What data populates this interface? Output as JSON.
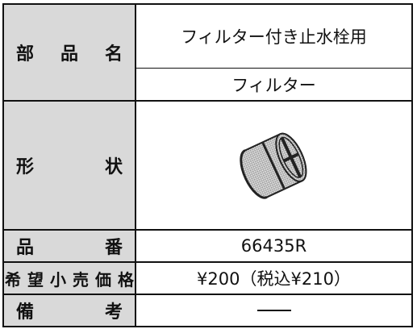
{
  "table": {
    "rows": [
      {
        "header": "部品名",
        "values": [
          "フィルター付き止水栓用",
          "フィルター"
        ]
      },
      {
        "header": "形状"
      },
      {
        "header": "品番",
        "value": "66435R"
      },
      {
        "header": "希望小売価格",
        "value": "¥200（税込¥210）"
      },
      {
        "header": "備考"
      }
    ]
  }
}
